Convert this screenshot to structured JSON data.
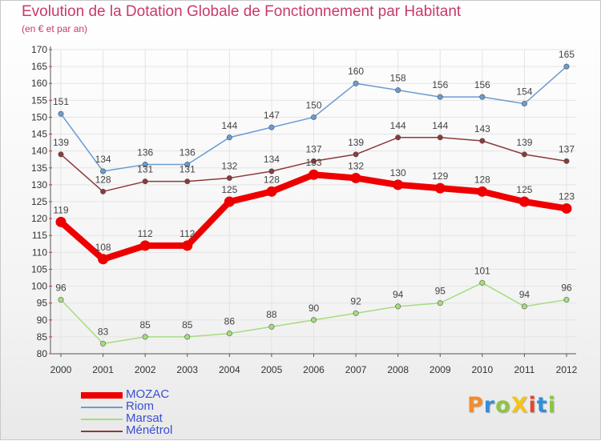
{
  "colors": {
    "title": "#c8396e",
    "legend_text": "#3a4fd1",
    "axis": "#555555",
    "gridline": "#e4e4e4",
    "logo": [
      "#f28c28",
      "#2f8fd8",
      "#8cc63f",
      "#f5c518",
      "#e8452c",
      "#2f8fd8",
      "#8cc63f"
    ]
  },
  "brand": {
    "logo_text": "ProXiti"
  },
  "chart_data": {
    "type": "line",
    "title": "Evolution de la Dotation Globale de Fonctionnement par Habitant",
    "subtitle": "(en € et par an)",
    "xlabel": "",
    "ylabel": "",
    "x": [
      "2000",
      "2001",
      "2002",
      "2003",
      "2004",
      "2005",
      "2006",
      "2007",
      "2008",
      "2009",
      "2010",
      "2011",
      "2012"
    ],
    "ylim": [
      80,
      170
    ],
    "yticks": [
      80,
      85,
      90,
      95,
      100,
      105,
      110,
      115,
      120,
      125,
      130,
      135,
      140,
      145,
      150,
      155,
      160,
      165,
      170
    ],
    "grid": true,
    "legend_position": "bottom-left",
    "series": [
      {
        "name": "MOZAC",
        "color": "#ee0000",
        "emphasis": true,
        "values": [
          119,
          108,
          112,
          112,
          125,
          128,
          133,
          132,
          130,
          129,
          128,
          125,
          123
        ]
      },
      {
        "name": "Riom",
        "color": "#6b9bd2",
        "emphasis": false,
        "values": [
          151,
          134,
          136,
          136,
          144,
          147,
          150,
          160,
          158,
          156,
          156,
          154,
          165
        ]
      },
      {
        "name": "Marsat",
        "color": "#a6dc7e",
        "emphasis": false,
        "values": [
          96,
          83,
          85,
          85,
          86,
          88,
          90,
          92,
          94,
          95,
          101,
          94,
          96
        ]
      },
      {
        "name": "Ménétrol",
        "color": "#8b3a3a",
        "emphasis": false,
        "values": [
          139,
          128,
          131,
          131,
          132,
          134,
          137,
          139,
          144,
          144,
          143,
          139,
          137
        ]
      }
    ]
  }
}
